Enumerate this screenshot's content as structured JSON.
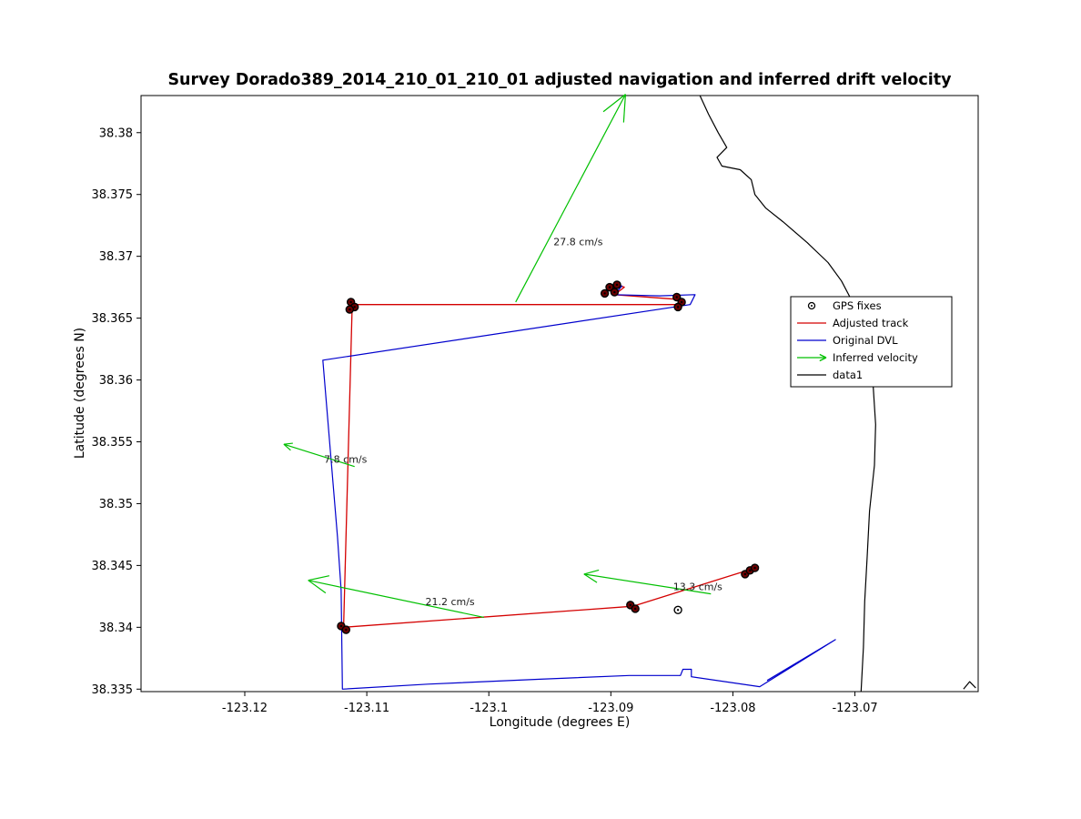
{
  "figure": {
    "title": "Survey Dorado389_2014_210_01_210_01 adjusted navigation and inferred drift velocity",
    "xlabel": "Longitude (degrees E)",
    "ylabel": "Latitude (degrees N)"
  },
  "colors": {
    "adjusted_track": "#d40000",
    "original_dvl": "#0000cd",
    "inferred_velocity": "#00c000",
    "coastline": "#000000",
    "gps_fix_fill": "#6b0000",
    "background": "#ffffff",
    "annotation_text": "#1a1a1a"
  },
  "chart_data": {
    "type": "line",
    "title": "Survey Dorado389_2014_210_01_210_01 adjusted navigation and inferred drift velocity",
    "xlabel": "Longitude (degrees E)",
    "ylabel": "Latitude (degrees N)",
    "xlim": [
      -123.1285,
      -123.0599
    ],
    "ylim": [
      38.3348,
      38.383
    ],
    "grid": false,
    "x_ticks": {
      "values": [
        -123.12,
        -123.11,
        -123.1,
        -123.09,
        -123.08,
        -123.07
      ],
      "labels": [
        "-123.12",
        "-123.11",
        "-123.1",
        "-123.09",
        "-123.08",
        "-123.07"
      ]
    },
    "y_ticks": {
      "values": [
        38.335,
        38.34,
        38.345,
        38.35,
        38.355,
        38.36,
        38.365,
        38.37,
        38.375,
        38.38
      ],
      "labels": [
        "38.335",
        "38.34",
        "38.345",
        "38.35",
        "38.355",
        "38.36",
        "38.365",
        "38.37",
        "38.375",
        "38.38"
      ]
    },
    "legend": {
      "position": "inside-right",
      "entries": [
        {
          "label": "GPS fixes",
          "sample": "marker",
          "color": "#000000"
        },
        {
          "label": "Adjusted track",
          "sample": "line",
          "color": "#d40000"
        },
        {
          "label": "Original DVL",
          "sample": "line",
          "color": "#0000cd"
        },
        {
          "label": "Inferred velocity",
          "sample": "arrow",
          "color": "#00c000"
        },
        {
          "label": "data1",
          "sample": "line",
          "color": "#000000"
        }
      ]
    },
    "series": [
      {
        "name": "Adjusted track",
        "color": "#d40000",
        "width": 1.3,
        "segments": [
          [
            [
              -123.0902,
              38.3672
            ],
            [
              -123.0894,
              38.3677
            ],
            [
              -123.0889,
              38.3675
            ],
            [
              -123.0897,
              38.3669
            ],
            [
              -123.0843,
              38.3665
            ],
            [
              -123.0841,
              38.3661
            ],
            [
              -123.111,
              38.3661
            ],
            [
              -123.1112,
              38.3659
            ],
            [
              -123.1119,
              38.34
            ],
            [
              -123.0882,
              38.3417
            ],
            [
              -123.0785,
              38.3447
            ]
          ]
        ]
      },
      {
        "name": "Original DVL",
        "color": "#0000cd",
        "width": 1.2,
        "segments": [
          [
            [
              -123.0907,
              38.3669
            ],
            [
              -123.0899,
              38.3677
            ],
            [
              -123.0891,
              38.3676
            ],
            [
              -123.0897,
              38.3669
            ],
            [
              -123.086,
              38.3668
            ],
            [
              -123.0831,
              38.3669
            ],
            [
              -123.0835,
              38.3661
            ],
            [
              -123.1136,
              38.3616
            ],
            [
              -123.1124,
              38.3473
            ],
            [
              -123.1121,
              38.343
            ],
            [
              -123.112,
              38.335
            ],
            [
              -123.105,
              38.3354
            ],
            [
              -123.0958,
              38.3358
            ],
            [
              -123.0885,
              38.3361
            ],
            [
              -123.0843,
              38.3361
            ],
            [
              -123.0841,
              38.3366
            ],
            [
              -123.0834,
              38.3366
            ],
            [
              -123.0834,
              38.336
            ],
            [
              -123.0778,
              38.3352
            ],
            [
              -123.0716,
              38.339
            ],
            [
              -123.0772,
              38.3357
            ]
          ]
        ]
      },
      {
        "name": "data1",
        "color": "#000000",
        "width": 1.2,
        "segments": [
          [
            [
              -123.0827,
              38.383
            ],
            [
              -123.082,
              38.3815
            ],
            [
              -123.0812,
              38.38
            ],
            [
              -123.0805,
              38.3788
            ],
            [
              -123.0813,
              38.378
            ],
            [
              -123.0809,
              38.3773
            ],
            [
              -123.0794,
              38.377
            ],
            [
              -123.0785,
              38.3762
            ],
            [
              -123.0782,
              38.375
            ],
            [
              -123.0773,
              38.3739
            ],
            [
              -123.0759,
              38.3728
            ],
            [
              -123.0739,
              38.3711
            ],
            [
              -123.0722,
              38.3695
            ],
            [
              -123.0711,
              38.368
            ],
            [
              -123.0702,
              38.3663
            ],
            [
              -123.0694,
              38.3644
            ],
            [
              -123.0689,
              38.3619
            ],
            [
              -123.0685,
              38.3594
            ],
            [
              -123.0683,
              38.3564
            ],
            [
              -123.0684,
              38.3531
            ],
            [
              -123.0688,
              38.3494
            ],
            [
              -123.069,
              38.3457
            ],
            [
              -123.0692,
              38.3421
            ],
            [
              -123.0693,
              38.3384
            ],
            [
              -123.0695,
              38.3348
            ]
          ],
          [
            [
              -123.0611,
              38.335
            ],
            [
              -123.0606,
              38.3356
            ],
            [
              -123.0601,
              38.3351
            ]
          ]
        ]
      }
    ],
    "gps_fixes": {
      "name": "GPS fixes",
      "marker": "circle-dot",
      "points": [
        [
          -123.1113,
          38.3663,
          1
        ],
        [
          -123.111,
          38.3659,
          1
        ],
        [
          -123.1114,
          38.3657,
          1
        ],
        [
          -123.0905,
          38.367,
          1
        ],
        [
          -123.0901,
          38.3675,
          1
        ],
        [
          -123.0895,
          38.3677,
          1
        ],
        [
          -123.0897,
          38.3671,
          1
        ],
        [
          -123.0846,
          38.3667,
          1
        ],
        [
          -123.0842,
          38.3663,
          1
        ],
        [
          -123.0845,
          38.3659,
          1
        ],
        [
          -123.1121,
          38.3401,
          1
        ],
        [
          -123.1117,
          38.3398,
          1
        ],
        [
          -123.0884,
          38.3418,
          1
        ],
        [
          -123.088,
          38.3415,
          1
        ],
        [
          -123.0845,
          38.3414,
          0
        ],
        [
          -123.079,
          38.3443,
          1
        ],
        [
          -123.0786,
          38.3446,
          1
        ],
        [
          -123.0782,
          38.3448,
          1
        ]
      ]
    },
    "velocity_arrows": [
      {
        "label": "27.8 cm/s",
        "speed_cm_s": 27.8,
        "tail": [
          -123.0978,
          38.3663
        ],
        "tip": [
          -123.0888,
          38.3831
        ],
        "label_at": [
          -123.0947,
          38.3709
        ]
      },
      {
        "label": "7.8 cm/s",
        "speed_cm_s": 7.8,
        "tail": [
          -123.111,
          38.353
        ],
        "tip": [
          -123.1168,
          38.3548
        ],
        "label_at": [
          -123.1135,
          38.3533
        ]
      },
      {
        "label": "21.2 cm/s",
        "speed_cm_s": 21.2,
        "tail": [
          -123.1004,
          38.3408
        ],
        "tip": [
          -123.1148,
          38.3438
        ],
        "label_at": [
          -123.1052,
          38.3418
        ]
      },
      {
        "label": "13.3 cm/s",
        "speed_cm_s": 13.3,
        "tail": [
          -123.0818,
          38.3427
        ],
        "tip": [
          -123.0922,
          38.3443
        ],
        "label_at": [
          -123.0849,
          38.343
        ]
      }
    ]
  }
}
